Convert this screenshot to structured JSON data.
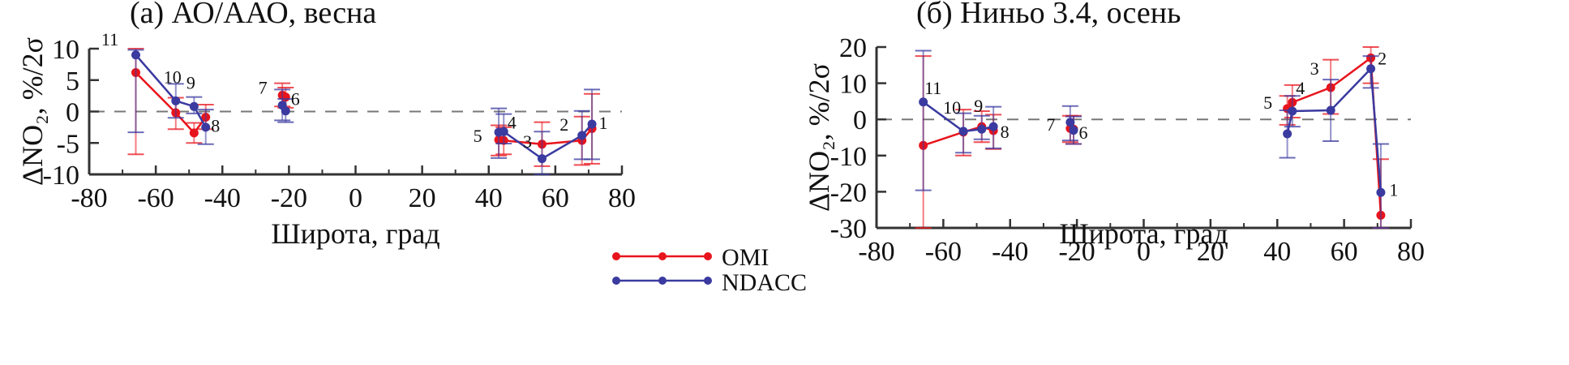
{
  "legend": {
    "entries": [
      {
        "name": "OMI",
        "color": "#e8141c"
      },
      {
        "name": "NDACC",
        "color": "#3a3aa0"
      }
    ]
  },
  "chart_data": [
    {
      "type": "line",
      "title": "(a) АО/ААО, весна",
      "xlabel": "Широта, град",
      "ylabel": "ΔNO₂, %/2σ",
      "xlim": [
        -80,
        80
      ],
      "ylim": [
        -10,
        10
      ],
      "xticks": [
        -80,
        -60,
        -40,
        -20,
        0,
        20,
        40,
        60,
        80
      ],
      "yticks": [
        -10,
        -5,
        0,
        5,
        10
      ],
      "reference_line": 0,
      "stations": [
        {
          "id": "11",
          "lat": -66
        },
        {
          "id": "10",
          "lat": -54
        },
        {
          "id": "9",
          "lat": -48.5
        },
        {
          "id": "8",
          "lat": -45
        },
        {
          "id": "7",
          "lat": -22
        },
        {
          "id": "6",
          "lat": -21
        },
        {
          "id": "5",
          "lat": 43
        },
        {
          "id": "4",
          "lat": 44.5
        },
        {
          "id": "3",
          "lat": 56
        },
        {
          "id": "2",
          "lat": 68
        },
        {
          "id": "1",
          "lat": 71
        }
      ],
      "series": [
        {
          "name": "OMI",
          "segments": [
            [
              0,
              1,
              2,
              3
            ],
            [
              4,
              5
            ],
            [
              6,
              7,
              8,
              9,
              10
            ]
          ],
          "x": [
            -66,
            -54,
            -48.5,
            -45,
            -22,
            -21,
            43,
            44.5,
            56,
            68,
            71
          ],
          "y": [
            6.2,
            -0.2,
            -3.4,
            -0.9,
            2.6,
            2.3,
            -4.5,
            -4.6,
            -5.2,
            -4.6,
            -2.7
          ],
          "err_low": [
            -6.8,
            -2.8,
            -5.0,
            -2.8,
            0.8,
            0.6,
            -7.0,
            -6.8,
            -8.7,
            -8.5,
            -8.3
          ],
          "err_high": [
            10.0,
            2.2,
            -1.8,
            1.1,
            4.5,
            3.8,
            -2.2,
            -2.5,
            -1.7,
            -0.8,
            2.8
          ]
        },
        {
          "name": "NDACC",
          "segments": [
            [
              0,
              1,
              2,
              3
            ],
            [
              4,
              5
            ],
            [
              6,
              7,
              8,
              9,
              10
            ]
          ],
          "x": [
            -66,
            -54,
            -48.5,
            -45,
            -22,
            -21,
            43,
            44.5,
            56,
            68,
            71
          ],
          "y": [
            9.0,
            1.7,
            0.8,
            -2.5,
            1.0,
            0.1,
            -3.3,
            -3.2,
            -7.5,
            -3.8,
            -2.0
          ],
          "err_low": [
            -3.3,
            -1.0,
            -0.3,
            -5.2,
            -1.4,
            -1.7,
            -7.4,
            -5.1,
            -10.0,
            -7.6,
            -7.6
          ],
          "err_high": [
            9.8,
            4.4,
            2.3,
            0.3,
            3.5,
            2.0,
            0.5,
            -0.4,
            -3.2,
            0.1,
            3.5
          ]
        }
      ]
    },
    {
      "type": "line",
      "title": "(б) Ниньо 3.4, осень",
      "xlabel": "Широта, град",
      "ylabel": "ΔNO₂, %/2σ",
      "xlim": [
        -80,
        80
      ],
      "ylim": [
        -30,
        20
      ],
      "xticks": [
        -80,
        -60,
        -40,
        -20,
        0,
        20,
        40,
        60,
        80
      ],
      "yticks": [
        -30,
        -20,
        -10,
        0,
        10,
        20
      ],
      "reference_line": 0,
      "stations": [
        {
          "id": "11",
          "lat": -66
        },
        {
          "id": "10",
          "lat": -54
        },
        {
          "id": "9",
          "lat": -48.5
        },
        {
          "id": "8",
          "lat": -45
        },
        {
          "id": "7",
          "lat": -22
        },
        {
          "id": "6",
          "lat": -21
        },
        {
          "id": "5",
          "lat": 43
        },
        {
          "id": "4",
          "lat": 44.5
        },
        {
          "id": "3",
          "lat": 56
        },
        {
          "id": "2",
          "lat": 68
        },
        {
          "id": "1",
          "lat": 71
        }
      ],
      "series": [
        {
          "name": "OMI",
          "segments": [
            [
              0,
              1,
              2,
              3
            ],
            [
              4,
              5
            ],
            [
              6,
              7,
              8,
              9,
              10
            ]
          ],
          "x": [
            -66,
            -54,
            -48.5,
            -45,
            -22,
            -21,
            43,
            44.5,
            56,
            68,
            71
          ],
          "y": [
            -7.2,
            -3.5,
            -2.0,
            -3.1,
            -2.5,
            -2.7,
            3.0,
            4.7,
            8.8,
            17.0,
            -26.5
          ],
          "err_low": [
            -30.0,
            -10.0,
            -6.3,
            -8.2,
            -6.3,
            -6.8,
            -1.5,
            0.5,
            1.5,
            10.0,
            -30.0
          ],
          "err_high": [
            17.5,
            2.7,
            2.3,
            1.3,
            1.0,
            1.0,
            6.5,
            9.5,
            16.5,
            20.0,
            -11.0
          ]
        },
        {
          "name": "NDACC",
          "segments": [
            [
              0,
              1,
              2,
              3
            ],
            [
              4,
              5
            ],
            [
              6,
              7,
              8,
              9,
              10
            ]
          ],
          "x": [
            -66,
            -54,
            -48.5,
            -45,
            -22,
            -21,
            43,
            44.5,
            56,
            68,
            71
          ],
          "y": [
            4.8,
            -3.3,
            -2.7,
            -2.0,
            -0.8,
            -3.0,
            -4.0,
            2.3,
            2.5,
            14.0,
            -20.2
          ],
          "err_low": [
            -19.6,
            -9.2,
            -5.5,
            -8.0,
            -5.8,
            -6.8,
            -10.6,
            -2.0,
            -6.0,
            8.7,
            -30.0
          ],
          "err_high": [
            19.0,
            1.7,
            1.0,
            3.5,
            3.7,
            0.8,
            2.5,
            6.5,
            11.0,
            17.5,
            -6.8
          ]
        }
      ]
    }
  ]
}
